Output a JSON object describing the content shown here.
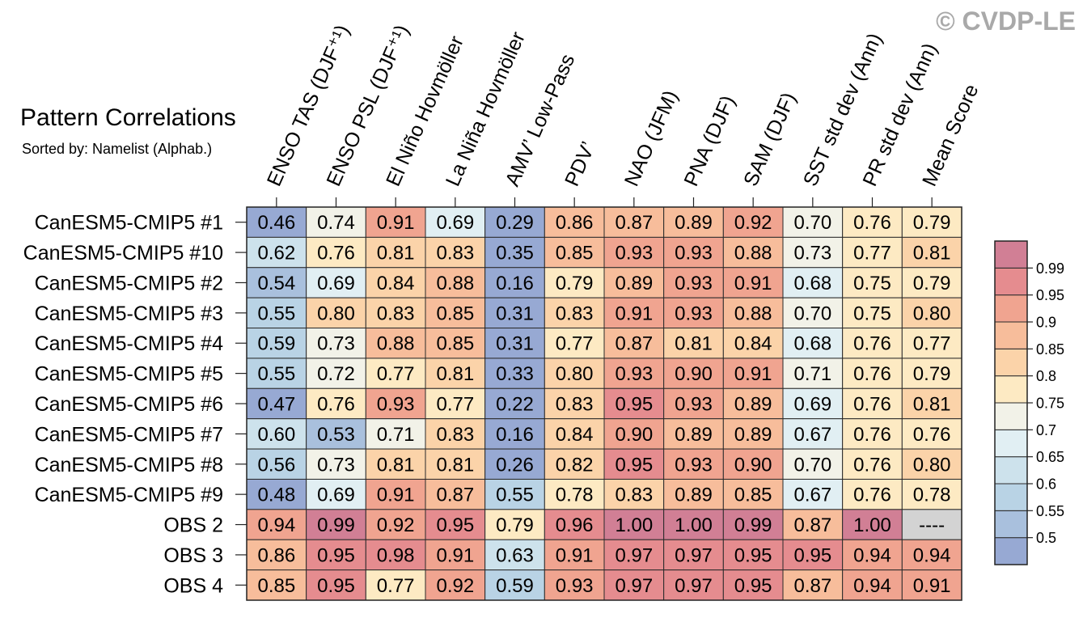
{
  "watermark": "© CVDP-LE",
  "chart_data": {
    "type": "heatmap",
    "title": "Pattern Correlations",
    "subtitle": "Sorted by: Namelist (Alphab.)",
    "columns": [
      "ENSO TAS (DJF⁺¹)",
      "ENSO PSL (DJF⁺¹)",
      "El Niño Hovmöller",
      "La Niña Hovmöller",
      "AMV’ Low-Pass",
      "PDV’",
      "NAO (JFM)",
      "PNA (DJF)",
      "SAM (DJF)",
      "SST std dev (Ann)",
      "PR std dev (Ann)",
      "Mean Score"
    ],
    "rows": [
      "CanESM5-CMIP5 #1",
      "CanESM5-CMIP5 #10",
      "CanESM5-CMIP5 #2",
      "CanESM5-CMIP5 #3",
      "CanESM5-CMIP5 #4",
      "CanESM5-CMIP5 #5",
      "CanESM5-CMIP5 #6",
      "CanESM5-CMIP5 #7",
      "CanESM5-CMIP5 #8",
      "CanESM5-CMIP5 #9",
      "OBS 2",
      "OBS 3",
      "OBS 4"
    ],
    "values": [
      [
        0.46,
        0.74,
        0.91,
        0.69,
        0.29,
        0.86,
        0.87,
        0.89,
        0.92,
        0.7,
        0.76,
        0.79
      ],
      [
        0.62,
        0.76,
        0.81,
        0.83,
        0.35,
        0.85,
        0.93,
        0.93,
        0.88,
        0.73,
        0.77,
        0.81
      ],
      [
        0.54,
        0.69,
        0.84,
        0.88,
        0.16,
        0.79,
        0.89,
        0.93,
        0.91,
        0.68,
        0.75,
        0.79
      ],
      [
        0.55,
        0.8,
        0.83,
        0.85,
        0.31,
        0.83,
        0.91,
        0.93,
        0.88,
        0.7,
        0.75,
        0.8
      ],
      [
        0.59,
        0.73,
        0.88,
        0.85,
        0.31,
        0.77,
        0.87,
        0.81,
        0.84,
        0.68,
        0.76,
        0.77
      ],
      [
        0.55,
        0.72,
        0.77,
        0.81,
        0.33,
        0.8,
        0.93,
        0.9,
        0.91,
        0.71,
        0.76,
        0.79
      ],
      [
        0.47,
        0.76,
        0.93,
        0.77,
        0.22,
        0.83,
        0.95,
        0.93,
        0.89,
        0.69,
        0.76,
        0.81
      ],
      [
        0.6,
        0.53,
        0.71,
        0.83,
        0.16,
        0.84,
        0.9,
        0.89,
        0.89,
        0.67,
        0.76,
        0.76
      ],
      [
        0.56,
        0.73,
        0.81,
        0.81,
        0.26,
        0.82,
        0.95,
        0.93,
        0.9,
        0.7,
        0.76,
        0.8
      ],
      [
        0.48,
        0.69,
        0.91,
        0.87,
        0.55,
        0.78,
        0.83,
        0.89,
        0.85,
        0.67,
        0.76,
        0.78
      ],
      [
        0.94,
        0.99,
        0.92,
        0.95,
        0.79,
        0.96,
        1.0,
        1.0,
        0.99,
        0.87,
        1.0,
        null
      ],
      [
        0.86,
        0.95,
        0.98,
        0.91,
        0.63,
        0.91,
        0.97,
        0.97,
        0.95,
        0.95,
        0.94,
        0.94
      ],
      [
        0.85,
        0.95,
        0.77,
        0.92,
        0.59,
        0.93,
        0.97,
        0.97,
        0.95,
        0.87,
        0.94,
        0.91
      ]
    ],
    "missing_text": "----",
    "grid": true,
    "colorbar": {
      "placement": "right",
      "levels": [
        0.5,
        0.55,
        0.6,
        0.65,
        0.7,
        0.75,
        0.8,
        0.85,
        0.9,
        0.95,
        0.99
      ],
      "colors": [
        "#97a9d3",
        "#a9c0dd",
        "#b9d3e5",
        "#cde2ec",
        "#e1eff3",
        "#f2f2e8",
        "#fdeac3",
        "#fbd3a9",
        "#f7bd9b",
        "#f0a490",
        "#e58c8f",
        "#d17f95"
      ],
      "missing_color": "#d3d3d3"
    }
  }
}
